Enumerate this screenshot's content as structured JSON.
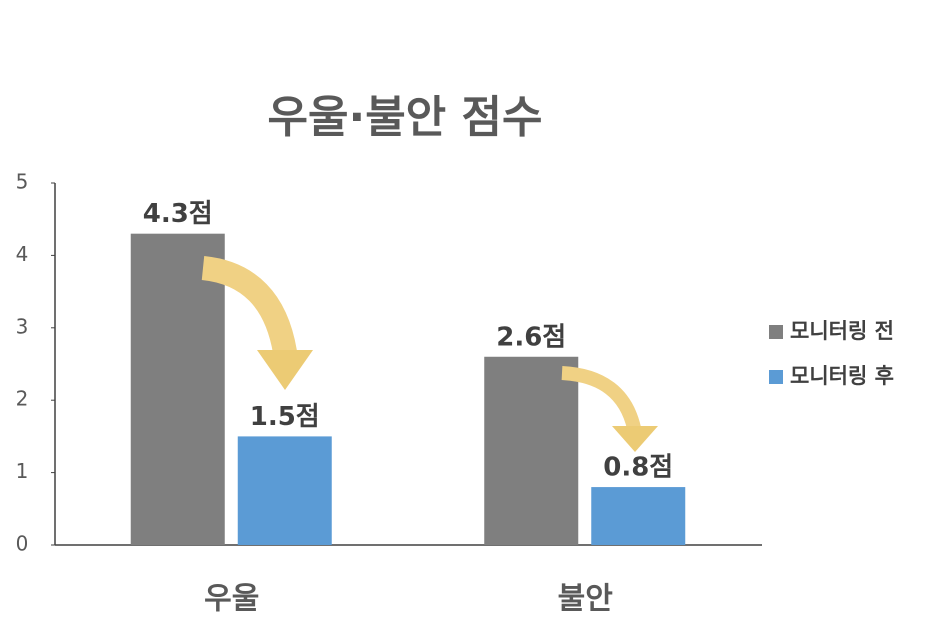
{
  "chart_data": {
    "type": "bar",
    "title": "우울·불안 점수",
    "categories": [
      "우울",
      "불안"
    ],
    "series": [
      {
        "name": "모니터링 전",
        "color": "#7f7f7f",
        "values": [
          4.3,
          2.6
        ],
        "value_labels": [
          "4.3점",
          "2.6점"
        ]
      },
      {
        "name": "모니터링 후",
        "color": "#5b9bd5",
        "values": [
          1.5,
          0.8
        ],
        "value_labels": [
          "1.5점",
          "0.8점"
        ]
      }
    ],
    "ylim": [
      0,
      5
    ],
    "yticks": [
      0,
      1,
      2,
      3,
      4,
      5
    ],
    "grid": false,
    "legend": "right"
  }
}
